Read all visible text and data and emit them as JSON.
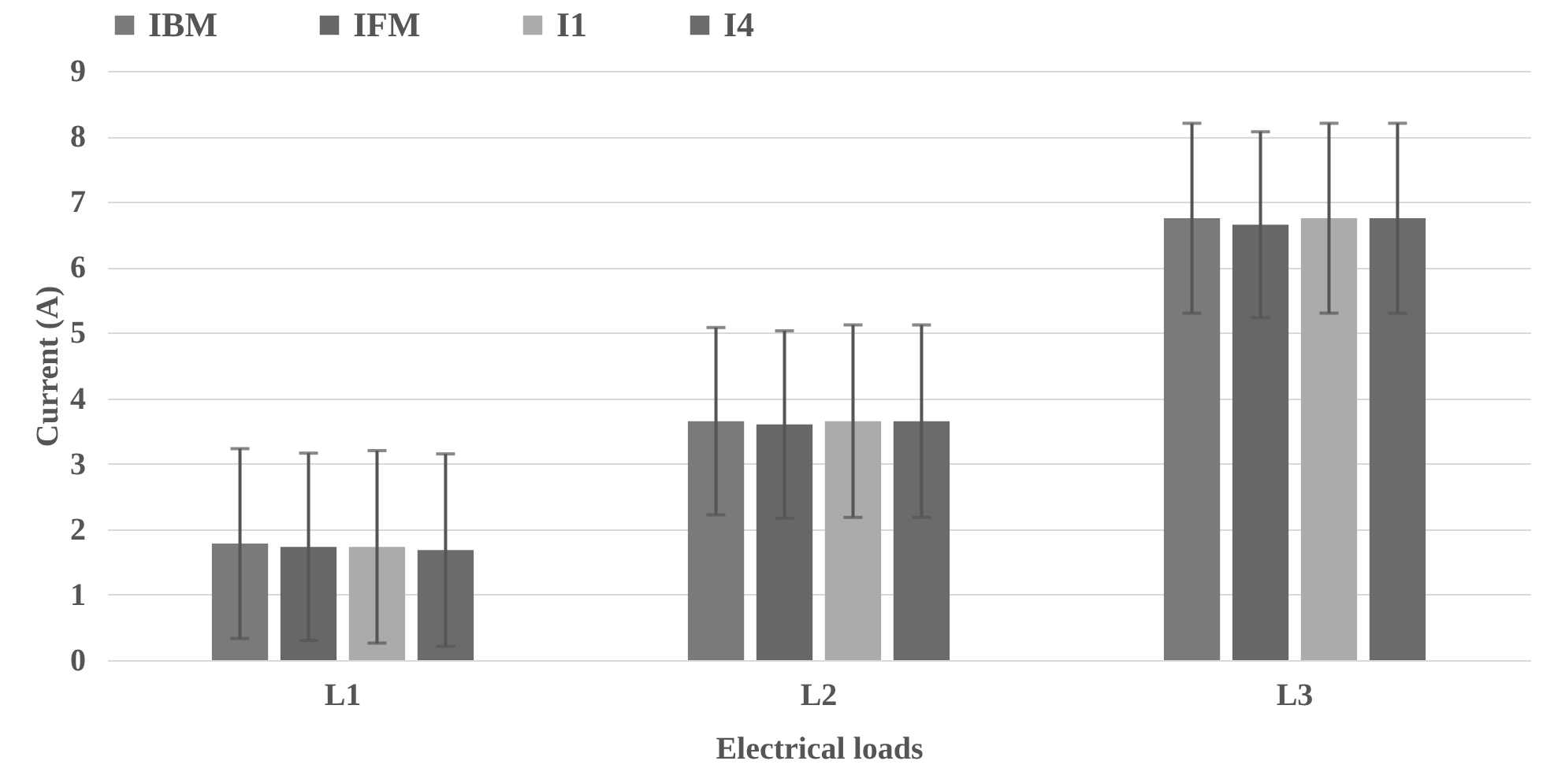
{
  "chart_data": {
    "type": "bar",
    "xlabel": "Electrical loads",
    "ylabel": "Current (A)",
    "categories": [
      "L1",
      "L2",
      "L3"
    ],
    "series": [
      {
        "name": "IBM",
        "color": "#7a7a7a",
        "values": [
          1.78,
          3.65,
          6.75
        ],
        "errors": [
          1.45,
          1.43,
          1.45
        ]
      },
      {
        "name": "IFM",
        "color": "#676767",
        "values": [
          1.73,
          3.6,
          6.65
        ],
        "errors": [
          1.43,
          1.43,
          1.42
        ]
      },
      {
        "name": "I1",
        "color": "#ababab",
        "values": [
          1.73,
          3.65,
          6.75
        ],
        "errors": [
          1.47,
          1.47,
          1.45
        ]
      },
      {
        "name": "I4",
        "color": "#6b6b6b",
        "values": [
          1.68,
          3.65,
          6.75
        ],
        "errors": [
          1.47,
          1.47,
          1.45
        ]
      }
    ],
    "ylim": [
      0,
      9
    ],
    "yticks": [
      0,
      1,
      2,
      3,
      4,
      5,
      6,
      7,
      8,
      9
    ],
    "grid": "y",
    "legend": "top"
  }
}
